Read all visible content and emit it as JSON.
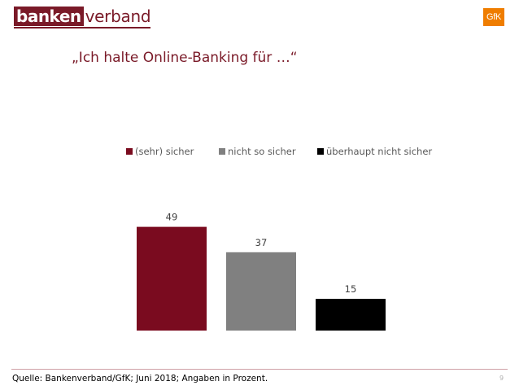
{
  "header": {
    "logo_left_box": "banken",
    "logo_left_rest": "verband",
    "logo_right": "GfK"
  },
  "colors": {
    "brand": "#7a1a28",
    "gfk_orange": "#ef7d00"
  },
  "chart_data": {
    "type": "bar",
    "title": "„Ich halte Online-Banking für …“",
    "xlabel": "",
    "ylabel": "",
    "ylim": [
      0,
      55
    ],
    "grid": false,
    "legend_position": "top",
    "series": [
      {
        "name": "(sehr) sicher",
        "value": 49,
        "color": "#7a0b1f"
      },
      {
        "name": "nicht so sicher",
        "value": 37,
        "color": "#808080"
      },
      {
        "name": "überhaupt nicht sicher",
        "value": 15,
        "color": "#000000"
      }
    ]
  },
  "footer": {
    "source": "Quelle: Bankenverband/GfK; Juni 2018; Angaben in Prozent.",
    "page_number": "9"
  }
}
